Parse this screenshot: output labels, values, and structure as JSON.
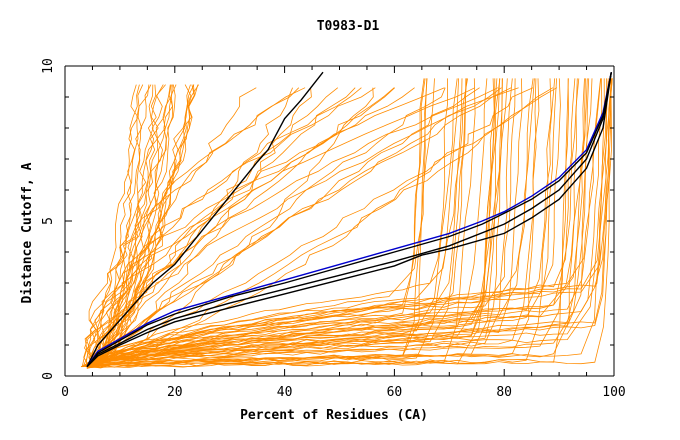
{
  "chart_data": {
    "type": "line",
    "title": "T0983-D1",
    "xlabel": "Percent of Residues (CA)",
    "ylabel": "Distance Cutoff, A",
    "xlim": [
      0,
      100
    ],
    "ylim": [
      0,
      10
    ],
    "x_ticks": [
      0,
      20,
      40,
      60,
      80,
      100
    ],
    "y_ticks": [
      0,
      5,
      10
    ],
    "grid": false,
    "legend": "none",
    "colors": {
      "orange": "#ff8c00",
      "black": "#000000",
      "blue": "#0000cd"
    },
    "series": [
      {
        "color": "black",
        "x": [
          4,
          6,
          9,
          12,
          16,
          20,
          25,
          30,
          35,
          37,
          40,
          43,
          47
        ],
        "y": [
          0.3,
          1.0,
          1.6,
          2.2,
          3.0,
          3.6,
          4.7,
          5.8,
          6.9,
          7.3,
          8.3,
          8.9,
          9.8
        ]
      },
      {
        "color": "blue",
        "x": [
          4,
          6,
          10,
          15,
          20,
          30,
          40,
          50,
          60,
          70,
          76,
          80,
          85,
          90,
          95,
          98,
          99.5
        ],
        "y": [
          0.3,
          0.8,
          1.2,
          1.7,
          2.1,
          2.6,
          3.1,
          3.6,
          4.1,
          4.6,
          5.0,
          5.3,
          5.8,
          6.4,
          7.3,
          8.5,
          9.8
        ]
      },
      {
        "color": "black",
        "x": [
          4,
          6,
          10,
          15,
          20,
          30,
          40,
          50,
          60,
          70,
          76,
          80,
          85,
          90,
          95,
          98,
          99.5
        ],
        "y": [
          0.3,
          0.75,
          1.15,
          1.65,
          2.0,
          2.55,
          3.0,
          3.5,
          4.0,
          4.5,
          4.9,
          5.25,
          5.7,
          6.3,
          7.2,
          8.4,
          9.8
        ]
      },
      {
        "color": "black",
        "x": [
          4,
          6,
          10,
          15,
          20,
          30,
          40,
          50,
          60,
          70,
          80,
          85,
          90,
          95,
          98,
          99.5
        ],
        "y": [
          0.3,
          0.7,
          1.05,
          1.5,
          1.85,
          2.35,
          2.8,
          3.25,
          3.7,
          4.2,
          4.9,
          5.4,
          6.0,
          7.0,
          8.3,
          9.8
        ]
      },
      {
        "color": "black",
        "x": [
          4,
          6,
          10,
          15,
          20,
          30,
          40,
          50,
          60,
          65,
          70,
          80,
          85,
          90,
          95,
          98,
          99.5
        ],
        "y": [
          0.3,
          0.65,
          1.0,
          1.4,
          1.75,
          2.2,
          2.65,
          3.1,
          3.55,
          3.9,
          4.1,
          4.6,
          5.1,
          5.7,
          6.7,
          8.0,
          9.8
        ]
      }
    ]
  }
}
